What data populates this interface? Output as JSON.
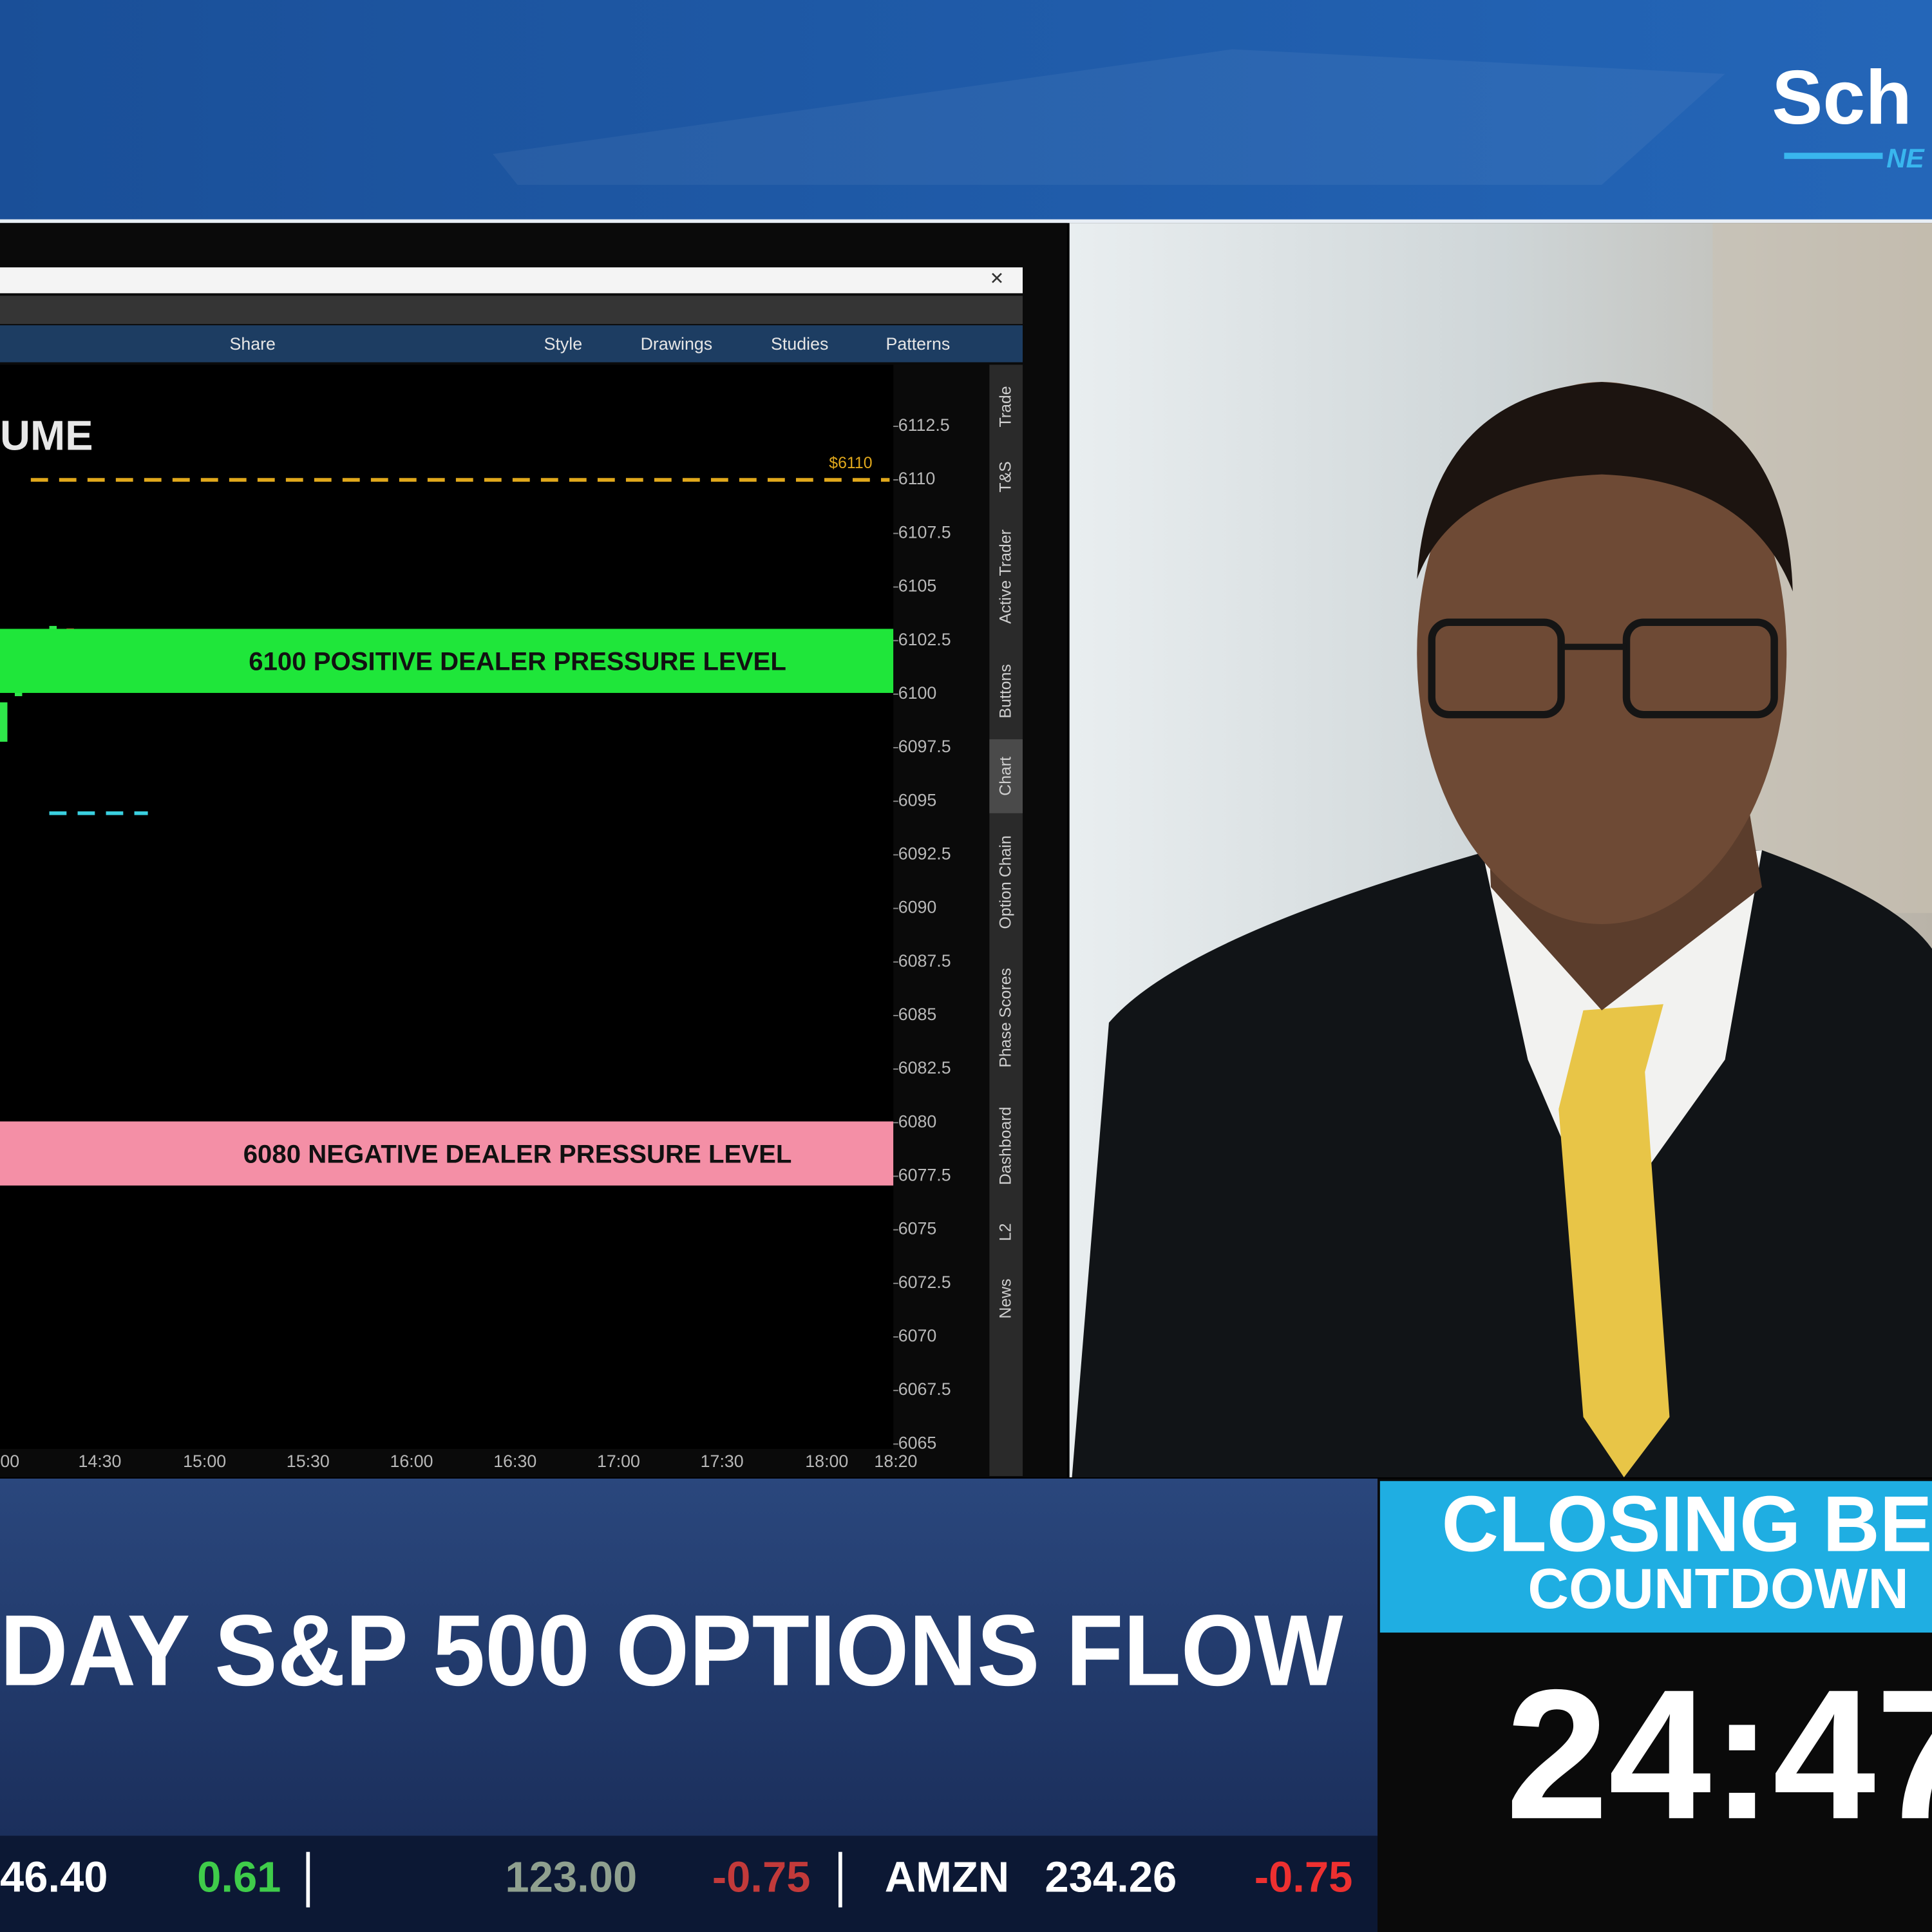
{
  "header": {
    "logo": "Sch",
    "logo_sub": "NE"
  },
  "toolbar": {
    "items": [
      "Share",
      "Style",
      "Drawings",
      "Studies",
      "Patterns"
    ]
  },
  "chart": {
    "title": "UME",
    "price_line": {
      "value": 6110,
      "label": "$6110",
      "color": "#e0a81c"
    },
    "yticks": [
      6112.5,
      6110,
      6107.5,
      6105,
      6102.5,
      6100,
      6097.5,
      6095,
      6092.5,
      6090,
      6087.5,
      6085,
      6082.5,
      6080,
      6077.5,
      6075,
      6072.5,
      6070,
      6067.5,
      6065
    ],
    "levels": [
      {
        "value": 6100,
        "label": "6100 POSITIVE DEALER PRESSURE LEVEL",
        "color": "#1fe63a"
      },
      {
        "value": 6080,
        "label": "6080 NEGATIVE DEALER PRESSURE LEVEL",
        "color": "#f48fa6"
      }
    ],
    "xticks": [
      "00",
      "14:30",
      "15:00",
      "15:30",
      "16:00",
      "16:30",
      "17:00",
      "17:30",
      "18:00",
      "18:20"
    ]
  },
  "side_tabs": [
    "Trade",
    "T&S",
    "Active Trader",
    "Buttons",
    "Chart",
    "Option Chain",
    "Phase Scores",
    "Dashboard",
    "L2",
    "News"
  ],
  "headline": "DAY S&P 500 OPTIONS FLOW",
  "countdown": {
    "title": "CLOSING BE",
    "subtitle": "COUNTDOWN",
    "time": "24:47"
  },
  "ticker": [
    {
      "text": "46.40",
      "color": "#ffffff"
    },
    {
      "text": "0.61",
      "color": "#3fcc4a"
    },
    {
      "text": "123.00",
      "color": "#8fa08f"
    },
    {
      "text": "-0.75",
      "color": "#c23a3a"
    },
    {
      "text": "AMZN",
      "color": "#ffffff"
    },
    {
      "text": "234.26",
      "color": "#ffffff"
    },
    {
      "text": "-0.75",
      "color": "#ee3030"
    }
  ]
}
